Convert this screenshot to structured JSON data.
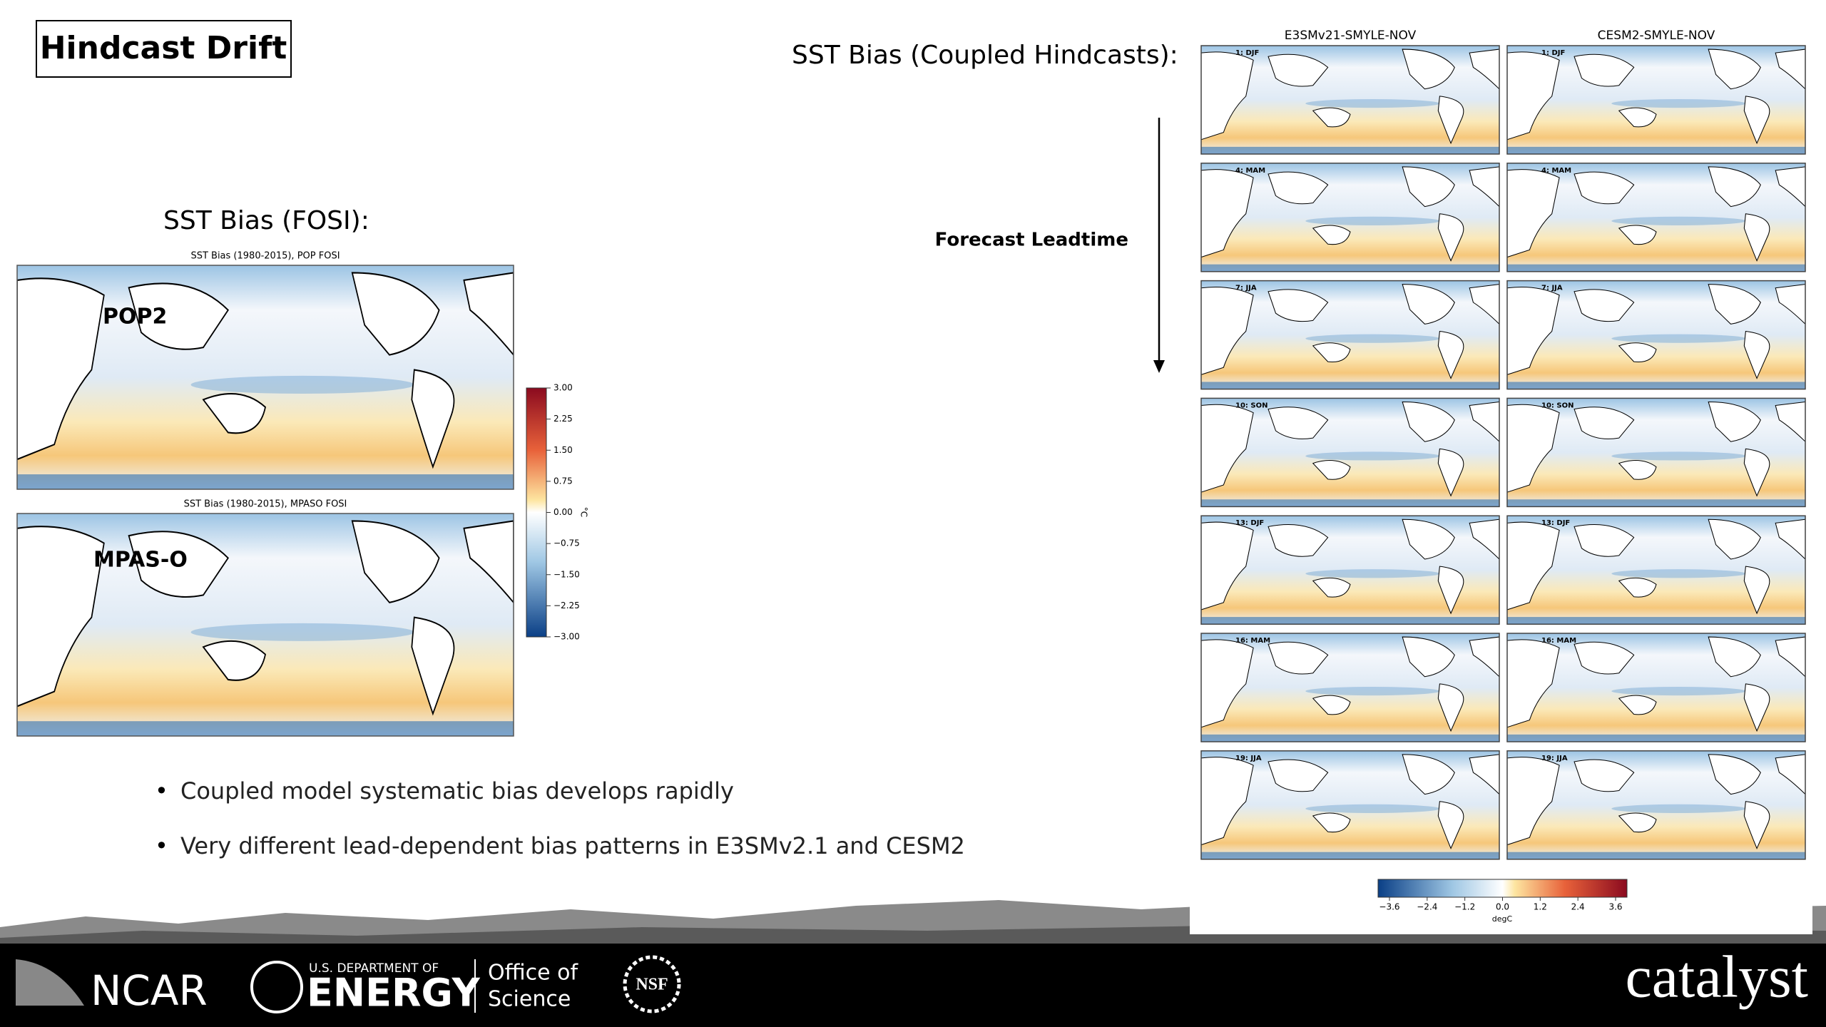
{
  "title": "Hindcast Drift",
  "fosi": {
    "heading": "SST Bias (FOSI):",
    "maps": [
      {
        "title": "SST Bias (1980-2015), POP FOSI",
        "label": "POP2"
      },
      {
        "title": "SST Bias (1980-2015), MPASO FOSI",
        "label": "MPAS-O"
      }
    ],
    "colorbar": {
      "ticks": [
        "3.00",
        "2.25",
        "1.50",
        "0.75",
        "0.00",
        "−0.75",
        "−1.50",
        "−2.25",
        "−3.00"
      ],
      "unit": "°C"
    }
  },
  "bullets": [
    "Coupled model systematic bias develops rapidly",
    "Very different lead-dependent bias patterns in E3SMv2.1 and CESM2"
  ],
  "coupled": {
    "heading": "SST Bias (Coupled Hindcasts):",
    "axis_label": "Forecast Leadtime",
    "columns": [
      "E3SMv21-SMYLE-NOV",
      "CESM2-SMYLE-NOV"
    ],
    "rows": [
      "1: DJF",
      "4: MAM",
      "7: JJA",
      "10: SON",
      "13: DJF",
      "16: MAM",
      "19: JJA"
    ],
    "colorbar": {
      "ticks": [
        "−3.6",
        "−2.4",
        "−1.2",
        "0.0",
        "1.2",
        "2.4",
        "3.6"
      ],
      "unit": "degC"
    }
  },
  "footer": {
    "logos": [
      "NCAR",
      "U.S. DEPARTMENT OF",
      "ENERGY",
      "Office of",
      "Science",
      "NSF",
      "catalyst"
    ]
  }
}
